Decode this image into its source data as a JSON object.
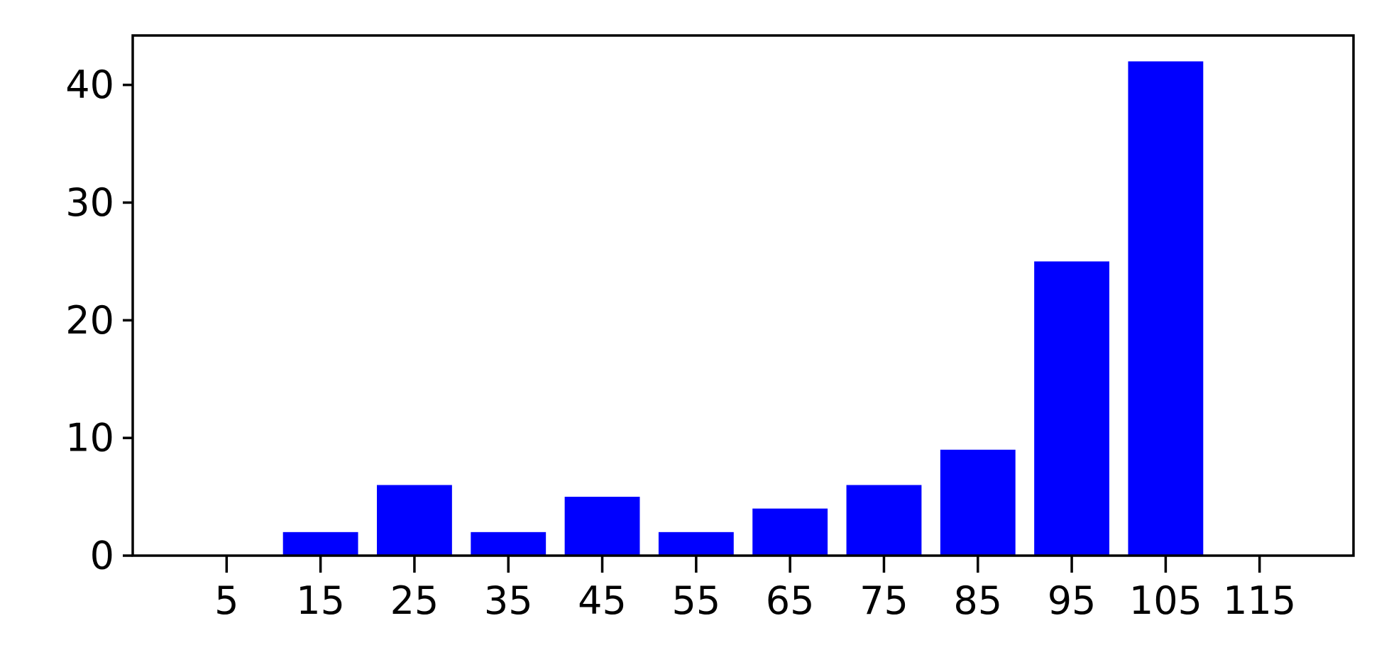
{
  "chart_data": {
    "type": "bar",
    "title": "",
    "xlabel": "",
    "ylabel": "",
    "categories": [
      "5",
      "15",
      "25",
      "35",
      "45",
      "55",
      "65",
      "75",
      "85",
      "95",
      "105",
      "115"
    ],
    "x": [
      5,
      15,
      25,
      35,
      45,
      55,
      65,
      75,
      85,
      95,
      105,
      115
    ],
    "values": [
      0,
      2,
      6,
      2,
      5,
      2,
      4,
      6,
      9,
      25,
      42,
      0
    ],
    "xlim": [
      -5,
      125
    ],
    "ylim": [
      0,
      44.2
    ],
    "yticks": [
      0,
      10,
      20,
      30,
      40
    ],
    "bar_width": 8,
    "bar_color": "#0000ff",
    "grid": false,
    "legend": "none"
  }
}
